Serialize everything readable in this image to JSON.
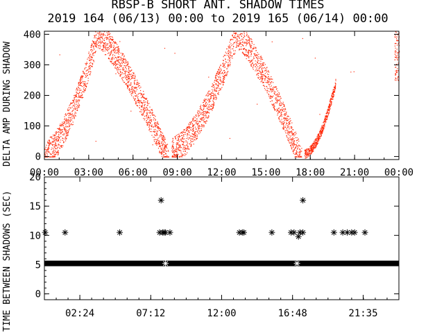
{
  "title_line1": "RBSP-B SHORT ANT. SHADOW TIMES",
  "title_line2": "2019 164 (06/13) 00:00 to 2019 165 (06/14) 00:00",
  "colors": {
    "top_points": "#ff2a0a",
    "bottom_points": "#000000",
    "axes": "#000000"
  },
  "chart_data": [
    {
      "type": "scatter",
      "ylabel": "DELTA AMP DURING SHADOW",
      "ylim": [
        -10,
        410
      ],
      "xlim_hours": [
        0,
        24
      ],
      "yticks": [
        "0",
        "100",
        "200",
        "300",
        "400"
      ],
      "ytick_values": [
        0,
        100,
        200,
        300,
        400
      ],
      "xticks": [
        "00:00",
        "03:00",
        "06:00",
        "09:00",
        "12:00",
        "15:00",
        "18:00",
        "21:00",
        "00:00"
      ],
      "xtick_hours": [
        0,
        3,
        6,
        9,
        12,
        15,
        18,
        21,
        24
      ],
      "point_color": "red",
      "clusters": [
        {
          "x_range_hours": [
            0.0,
            8.5
          ],
          "y_min": 0,
          "y_max": 400,
          "shape": "arch"
        },
        {
          "x_range_hours": [
            8.5,
            17.5
          ],
          "y_min": 0,
          "y_max": 400,
          "shape": "arch"
        },
        {
          "x_range_hours": [
            17.5,
            24.0
          ],
          "y_min": 0,
          "y_max": 400,
          "shape": "rising"
        }
      ]
    },
    {
      "type": "scatter",
      "ylabel": "TIME BETWEEN SHADOWS (SEC)",
      "ylim": [
        -1,
        20
      ],
      "xlim_hours": [
        0,
        24
      ],
      "yticks": [
        "0",
        "5",
        "10",
        "15",
        "20"
      ],
      "ytick_values": [
        0,
        5,
        10,
        15,
        20
      ],
      "xticks": [
        "02:24",
        "07:12",
        "12:00",
        "16:48",
        "21:35"
      ],
      "xtick_hours": [
        2.4,
        7.2,
        12.0,
        16.8,
        21.58
      ],
      "point_color": "black",
      "marker": "asterisk",
      "baseline_value": 5.2,
      "baseline_hours": [
        0,
        24
      ],
      "outliers": [
        {
          "x": 0.05,
          "y": 10.5
        },
        {
          "x": 1.4,
          "y": 10.5
        },
        {
          "x": 5.1,
          "y": 10.5
        },
        {
          "x": 7.8,
          "y": 10.5
        },
        {
          "x": 7.9,
          "y": 16.0
        },
        {
          "x": 8.0,
          "y": 10.5
        },
        {
          "x": 8.1,
          "y": 10.5
        },
        {
          "x": 8.2,
          "y": 10.5
        },
        {
          "x": 8.5,
          "y": 10.5
        },
        {
          "x": 13.2,
          "y": 10.5
        },
        {
          "x": 13.4,
          "y": 10.5
        },
        {
          "x": 13.5,
          "y": 10.5
        },
        {
          "x": 15.4,
          "y": 10.5
        },
        {
          "x": 16.7,
          "y": 10.5
        },
        {
          "x": 16.9,
          "y": 10.5
        },
        {
          "x": 17.2,
          "y": 9.8
        },
        {
          "x": 17.3,
          "y": 10.5
        },
        {
          "x": 17.5,
          "y": 10.5
        },
        {
          "x": 17.5,
          "y": 16.0
        },
        {
          "x": 19.6,
          "y": 10.5
        },
        {
          "x": 20.2,
          "y": 10.5
        },
        {
          "x": 20.5,
          "y": 10.5
        },
        {
          "x": 20.8,
          "y": 10.5
        },
        {
          "x": 21.0,
          "y": 10.5
        },
        {
          "x": 21.7,
          "y": 10.5
        }
      ],
      "low_markers": [
        {
          "x": 8.2,
          "y": 5.2
        },
        {
          "x": 17.1,
          "y": 5.2
        }
      ]
    }
  ]
}
